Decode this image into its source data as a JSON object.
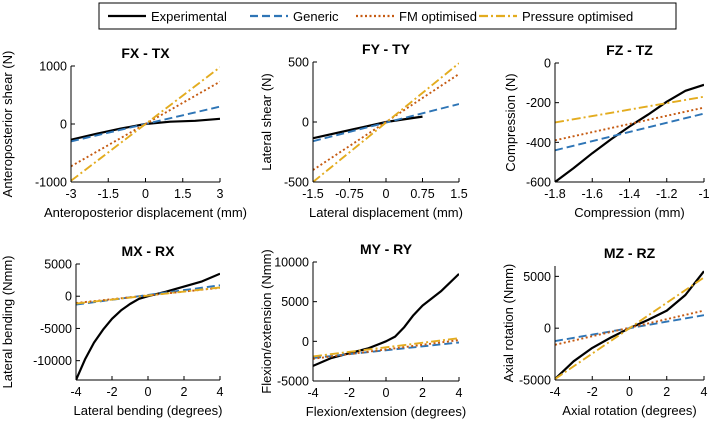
{
  "legend": {
    "items": [
      {
        "label": "Experimental",
        "color": "#000000",
        "dash": "solid"
      },
      {
        "label": "Generic",
        "color": "#2e75b6",
        "dash": "dashed"
      },
      {
        "label": "FM optimised",
        "color": "#c55a11",
        "dash": "dotted"
      },
      {
        "label": "Pressure optimised",
        "color": "#e3ac1f",
        "dash": "dashdot"
      }
    ]
  },
  "chart_data": [
    {
      "type": "line",
      "title": "FX - TX",
      "xlabel": "Anteroposterior displacement (mm)",
      "ylabel": "Anteroposterior shear (N)",
      "xlim": [
        -3,
        3
      ],
      "ylim": [
        -1000,
        1000
      ],
      "xticks": [
        -3,
        -1.5,
        0,
        1.5,
        3
      ],
      "xticklabels": [
        "-3",
        "-1.5",
        "0",
        "1.5",
        "3"
      ],
      "yticks": [
        -1000,
        0,
        1000
      ],
      "yticklabels": [
        "-1000",
        "0",
        "1000"
      ],
      "series": [
        {
          "name": "Experimental",
          "x": [
            -3,
            -2,
            -1,
            0,
            1,
            2,
            3
          ],
          "y": [
            -270,
            -170,
            -80,
            0,
            40,
            55,
            90
          ]
        },
        {
          "name": "Generic",
          "x": [
            -3,
            3
          ],
          "y": [
            -300,
            300
          ]
        },
        {
          "name": "FM optimised",
          "x": [
            -3,
            3
          ],
          "y": [
            -730,
            730
          ]
        },
        {
          "name": "Pressure optimised",
          "x": [
            -3,
            3
          ],
          "y": [
            -980,
            980
          ]
        }
      ]
    },
    {
      "type": "line",
      "title": "FY - TY",
      "xlabel": "Lateral displacement (mm)",
      "ylabel": "Lateral shear (N)",
      "xlim": [
        -1.5,
        1.5
      ],
      "ylim": [
        -500,
        500
      ],
      "xticks": [
        -1.5,
        -0.75,
        0,
        0.75,
        1.5
      ],
      "xticklabels": [
        "-1.5",
        "-0.75",
        "0",
        "0.75",
        "1.5"
      ],
      "yticks": [
        -500,
        0,
        500
      ],
      "yticklabels": [
        "-500",
        "0",
        "500"
      ],
      "series": [
        {
          "name": "Experimental",
          "x": [
            -1.5,
            -1,
            -0.5,
            0,
            0.5,
            0.75
          ],
          "y": [
            -135,
            -90,
            -45,
            0,
            30,
            45
          ]
        },
        {
          "name": "Generic",
          "x": [
            -1.5,
            1.5
          ],
          "y": [
            -160,
            150
          ]
        },
        {
          "name": "FM optimised",
          "x": [
            -1.5,
            1.5
          ],
          "y": [
            -400,
            400
          ]
        },
        {
          "name": "Pressure optimised",
          "x": [
            -1.5,
            1.5
          ],
          "y": [
            -500,
            490
          ]
        }
      ]
    },
    {
      "type": "line",
      "title": "FZ - TZ",
      "xlabel": "Compression (mm)",
      "ylabel": "Compression (N)",
      "xlim": [
        -1.8,
        -1
      ],
      "ylim": [
        -600,
        0
      ],
      "xticks": [
        -1.8,
        -1.6,
        -1.4,
        -1.2,
        -1
      ],
      "xticklabels": [
        "-1.8",
        "-1.6",
        "-1.4",
        "-1.2",
        "-1"
      ],
      "yticks": [
        -600,
        -400,
        -200,
        0
      ],
      "yticklabels": [
        "-600",
        "-400",
        "-200",
        "0"
      ],
      "series": [
        {
          "name": "Experimental",
          "x": [
            -1.8,
            -1.7,
            -1.6,
            -1.5,
            -1.4,
            -1.3,
            -1.2,
            -1.1,
            -1.0
          ],
          "y": [
            -600,
            -530,
            -455,
            -385,
            -320,
            -260,
            -195,
            -140,
            -110
          ]
        },
        {
          "name": "Generic",
          "x": [
            -1.8,
            -1.0
          ],
          "y": [
            -440,
            -255
          ]
        },
        {
          "name": "FM optimised",
          "x": [
            -1.8,
            -1.0
          ],
          "y": [
            -390,
            -225
          ]
        },
        {
          "name": "Pressure optimised",
          "x": [
            -1.8,
            -1.0
          ],
          "y": [
            -300,
            -170
          ]
        }
      ]
    },
    {
      "type": "line",
      "title": "MX - RX",
      "xlabel": "Lateral bending (degrees)",
      "ylabel": "Lateral bending (Nmm)",
      "xlim": [
        -4,
        4
      ],
      "ylim": [
        -13000,
        5000
      ],
      "xticks": [
        -4,
        -2,
        0,
        2,
        4
      ],
      "xticklabels": [
        "-4",
        "-2",
        "0",
        "2",
        "4"
      ],
      "yticks": [
        -10000,
        -5000,
        0,
        5000
      ],
      "yticklabels": [
        "-10000",
        "-5000",
        "0",
        "5000"
      ],
      "series": [
        {
          "name": "Experimental",
          "x": [
            -4,
            -3.5,
            -3,
            -2.5,
            -2,
            -1.5,
            -1,
            -0.5,
            0,
            1,
            2,
            3,
            4
          ],
          "y": [
            -13000,
            -9800,
            -7200,
            -5200,
            -3500,
            -2200,
            -1200,
            -400,
            0,
            700,
            1500,
            2300,
            3500
          ]
        },
        {
          "name": "Generic",
          "x": [
            -4,
            4
          ],
          "y": [
            -1300,
            1700
          ]
        },
        {
          "name": "FM optimised",
          "x": [
            -4,
            4
          ],
          "y": [
            -1050,
            1300
          ]
        },
        {
          "name": "Pressure optimised",
          "x": [
            -4,
            4
          ],
          "y": [
            -1150,
            1350
          ]
        }
      ]
    },
    {
      "type": "line",
      "title": "MY - RY",
      "xlabel": "Flexion/extension (degrees)",
      "ylabel": "Flexion/extension (Nmm)",
      "xlim": [
        -4,
        4
      ],
      "ylim": [
        -5000,
        10000
      ],
      "xticks": [
        -4,
        -2,
        0,
        2,
        4
      ],
      "xticklabels": [
        "-4",
        "-2",
        "0",
        "2",
        "4"
      ],
      "yticks": [
        -5000,
        0,
        5000,
        10000
      ],
      "yticklabels": [
        "-5000",
        "0",
        "5000",
        "10000"
      ],
      "series": [
        {
          "name": "Experimental",
          "x": [
            -4,
            -3,
            -2,
            -1,
            0,
            0.5,
            1,
            1.5,
            2,
            3,
            4
          ],
          "y": [
            -3100,
            -2100,
            -1500,
            -900,
            0,
            600,
            1800,
            3300,
            4500,
            6300,
            8500
          ]
        },
        {
          "name": "Generic",
          "x": [
            -4,
            4
          ],
          "y": [
            -2100,
            -150
          ]
        },
        {
          "name": "FM optimised",
          "x": [
            -4,
            4
          ],
          "y": [
            -2200,
            150
          ]
        },
        {
          "name": "Pressure optimised",
          "x": [
            -4,
            4
          ],
          "y": [
            -1900,
            400
          ]
        }
      ]
    },
    {
      "type": "line",
      "title": "MZ - RZ",
      "xlabel": "Axial rotation (degrees)",
      "ylabel": "Axial rotation (Nmm)",
      "xlim": [
        -4,
        4
      ],
      "ylim": [
        -5000,
        6000
      ],
      "xticks": [
        -4,
        -2,
        0,
        2,
        4
      ],
      "xticklabels": [
        "-4",
        "-2",
        "0",
        "2",
        "4"
      ],
      "yticks": [
        -5000,
        0,
        5000
      ],
      "yticklabels": [
        "-5000",
        "0",
        "5000"
      ],
      "series": [
        {
          "name": "Experimental",
          "x": [
            -4,
            -3,
            -2,
            -1,
            0,
            1,
            2,
            3,
            4
          ],
          "y": [
            -4900,
            -3200,
            -1900,
            -900,
            0,
            800,
            1700,
            3200,
            5500
          ]
        },
        {
          "name": "Generic",
          "x": [
            -4,
            4
          ],
          "y": [
            -1250,
            1250
          ]
        },
        {
          "name": "FM optimised",
          "x": [
            -4,
            4
          ],
          "y": [
            -1600,
            1700
          ]
        },
        {
          "name": "Pressure optimised",
          "x": [
            -4,
            4
          ],
          "y": [
            -4900,
            4900
          ]
        }
      ]
    }
  ]
}
